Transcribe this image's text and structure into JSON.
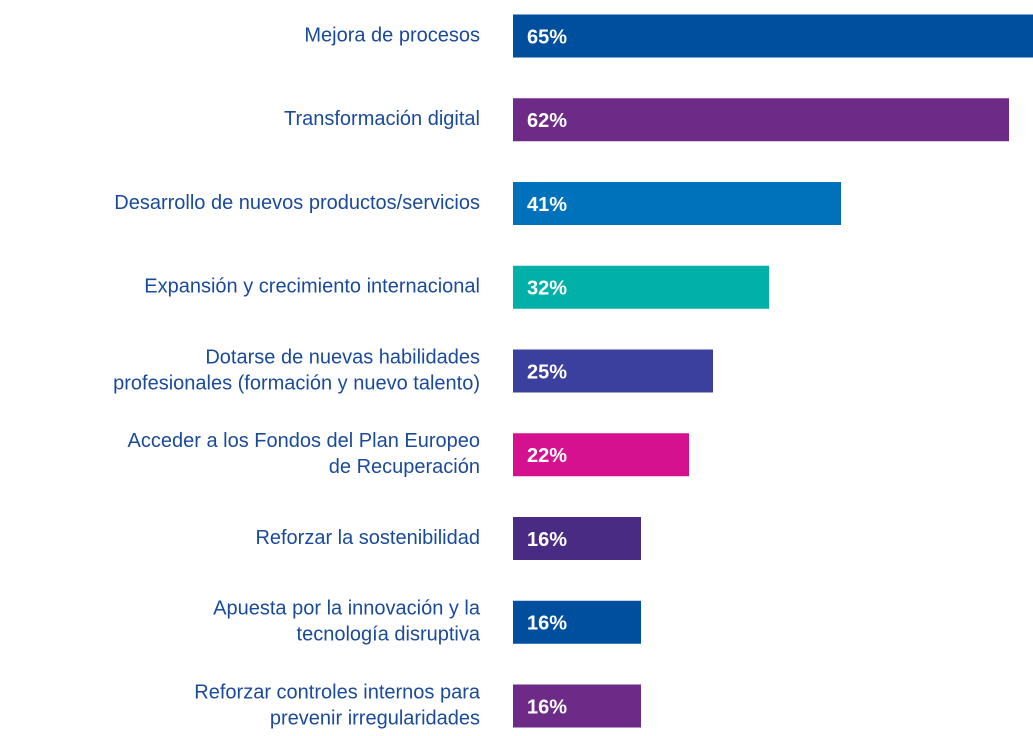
{
  "chart_data": {
    "type": "bar",
    "orientation": "horizontal",
    "categories": [
      [
        "Mejora de procesos"
      ],
      [
        "Transformación digital"
      ],
      [
        "Desarrollo de nuevos productos/servicios"
      ],
      [
        "Expansión y crecimiento internacional"
      ],
      [
        "Dotarse de nuevas habilidades",
        "profesionales (formación y nuevo talento)"
      ],
      [
        "Acceder a los Fondos del Plan Europeo",
        "de Recuperación"
      ],
      [
        "Reforzar la sostenibilidad"
      ],
      [
        "Apuesta por la innovación y la",
        "tecnología disruptiva"
      ],
      [
        "Reforzar controles internos para",
        "prevenir irregularidades"
      ]
    ],
    "values": [
      65,
      62,
      41,
      32,
      25,
      22,
      16,
      16,
      16
    ],
    "value_labels": [
      "65%",
      "62%",
      "41%",
      "32%",
      "25%",
      "22%",
      "16%",
      "16%",
      "16%"
    ],
    "colors": [
      "#004f9f",
      "#6d2a86",
      "#0072bc",
      "#00b0a9",
      "#3b3f9e",
      "#d6118f",
      "#4a2b84",
      "#004f9f",
      "#6d2a86"
    ]
  }
}
